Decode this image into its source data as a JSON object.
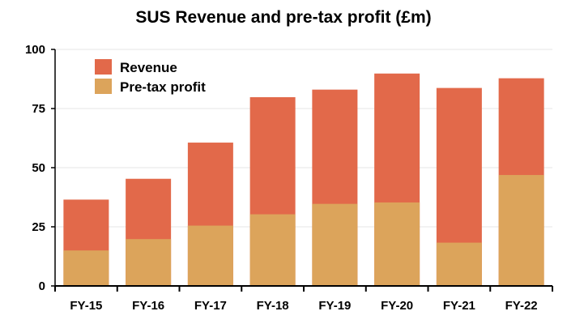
{
  "chart_data": {
    "type": "bar",
    "stacked": false,
    "overlapping": true,
    "title": "SUS Revenue and pre-tax profit (£m)",
    "xlabel": "",
    "ylabel": "",
    "categories": [
      "FY-15",
      "FY-16",
      "FY-17",
      "FY-18",
      "FY-19",
      "FY-20",
      "FY-21",
      "FY-22"
    ],
    "series": [
      {
        "name": "Revenue",
        "color": "#e2694a",
        "values": [
          36.5,
          45.3,
          60.6,
          79.8,
          83.0,
          89.8,
          83.7,
          87.8
        ]
      },
      {
        "name": "Pre-tax profit",
        "color": "#dca45b",
        "values": [
          15.0,
          19.8,
          25.5,
          30.3,
          34.7,
          35.3,
          18.3,
          46.9
        ]
      }
    ],
    "ylim": [
      0,
      100
    ],
    "yticks": [
      0,
      25,
      50,
      75,
      100
    ],
    "grid": true,
    "legend_position": "top-left"
  }
}
